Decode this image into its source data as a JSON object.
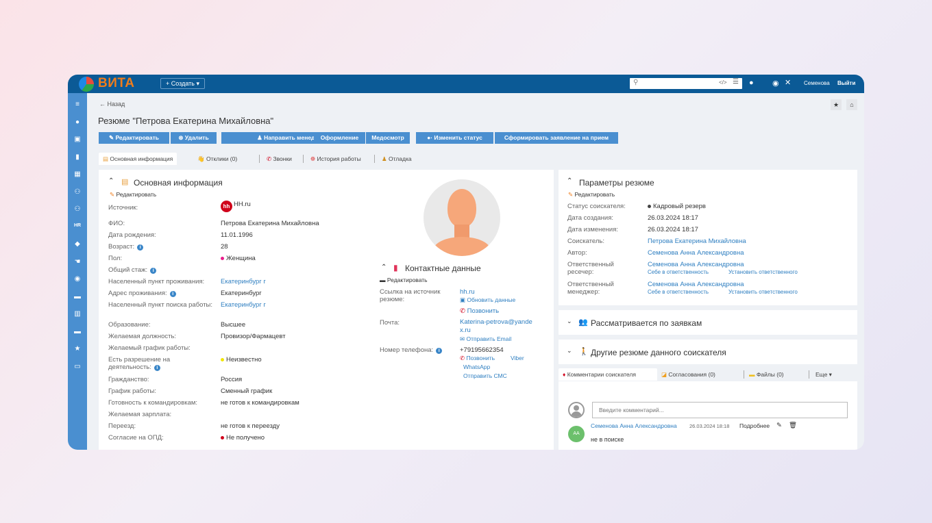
{
  "app": {
    "logo": "ВИТА",
    "create": "+ Создать ▾",
    "user": "Семенова",
    "logout": "Выйти",
    "search_placeholder": ""
  },
  "sidebar": {
    "icons": [
      "menu-icon",
      "user-circle-icon",
      "dashboard-icon",
      "book-icon",
      "grid-icon",
      "users-icon",
      "team-icon",
      "hr-icon",
      "ticket-icon",
      "hand-icon",
      "eye-icon",
      "document-icon",
      "library-icon",
      "file-icon",
      "star-icon",
      "open-book-icon"
    ],
    "hr_label": "HR"
  },
  "page": {
    "back": "← Назад",
    "title": "Резюме \"Петрова Екатерина Михайловна\""
  },
  "toolbar": [
    "Редактировать",
    "Удалить",
    "Направить менеджеру",
    "Оформление",
    "Медосмотр",
    "Изменить статус",
    "Сформировать заявление на прием"
  ],
  "tabs": [
    {
      "label": "Основная информация",
      "active": true
    },
    {
      "label": "Отклики (0)"
    },
    {
      "label": "Звонки"
    },
    {
      "label": "История работы"
    },
    {
      "label": "Отладка"
    }
  ],
  "basic": {
    "title": "Основная информация",
    "edit": "Редактировать",
    "source_badge": "hh",
    "rows": [
      {
        "label": "Источник:",
        "value": "HH.ru"
      },
      {
        "label": "ФИО:",
        "value": "Петрова Екатерина Михайловна"
      },
      {
        "label": "Дата рождения:",
        "value": "11.01.1996"
      },
      {
        "label": "Возраст:",
        "value": "28",
        "info": true
      },
      {
        "label": "Пол:",
        "value": "Женщина",
        "dot": "#e91e8c"
      },
      {
        "label": "Общий стаж:",
        "value": "",
        "info": true
      },
      {
        "label": "Населенный пункт проживания:",
        "value": "Екатеринбург г",
        "link": true
      },
      {
        "label": "Адрес проживания:",
        "value": "Екатеринбург",
        "info": true
      },
      {
        "label": "Населенный пункт поиска работы:",
        "value": "Екатеринбург г",
        "link": true
      },
      {
        "label": "Образование:",
        "value": "Высшее"
      },
      {
        "label": "Желаемая должность:",
        "value": "Провизор/Фармацевт"
      },
      {
        "label": "Желаемый график работы:",
        "value": ""
      },
      {
        "label": "Есть разрешение на деятельность:",
        "value": "Неизвестно",
        "dot": "#f2e600",
        "info": true
      },
      {
        "label": "Гражданство:",
        "value": "Россия"
      },
      {
        "label": "График работы:",
        "value": "Сменный график"
      },
      {
        "label": "Готовность к командировкам:",
        "value": "не готов к командировкам"
      },
      {
        "label": "Желаемая зарплата:",
        "value": ""
      },
      {
        "label": "Переезд:",
        "value": "не готов к переезду"
      },
      {
        "label": "Согласие на ОПД:",
        "value": "Не получено",
        "dot": "#d0021b"
      }
    ]
  },
  "contacts": {
    "title": "Контактные данные",
    "edit": "Редактировать",
    "source_label": "Ссылка на источник резюме:",
    "source_value": "hh.ru",
    "refresh": "Обновить данные",
    "call": "Позвонить",
    "email_label": "Почта:",
    "email_value": "Katerina-petrova@yandex.ru",
    "send_email": "Отправить Email",
    "phone_label": "Номер телефона:",
    "phone_value": "+79195662354",
    "phone_call": "Позвонить",
    "viber": "Viber",
    "whatsapp": "WhatsApp",
    "sms": "Отправить СМС"
  },
  "params": {
    "title": "Параметры резюме",
    "edit": "Редактировать",
    "status_label": "Статус соискателя:",
    "status": "Кадровый резерв",
    "created_label": "Дата создания:",
    "created": "26.03.2024 18:17",
    "modified_label": "Дата изменения:",
    "modified": "26.03.2024 18:17",
    "candidate_label": "Соискатель:",
    "candidate": "Петрова Екатерина Михайловна",
    "author_label": "Автор:",
    "author": "Семенова Анна Александровна",
    "researcher_label": "Ответственный ресечер:",
    "researcher": "Семенова Анна Александровна",
    "manager_label": "Ответственный менеджер:",
    "manager": "Семенова Анна Александровна",
    "self_assign": "Себе в ответственность",
    "set_responsible": "Установить ответственного"
  },
  "sections": {
    "requests": "Рассматривается по заявкам",
    "other": "Другие резюме данного соискателя"
  },
  "bottom_tabs": [
    "Комментарии соискателя",
    "Согласования (0)",
    "Файлы (0)",
    "Еще ▾"
  ],
  "comments": {
    "placeholder": "Введите комментарий...",
    "author": "Семенова Анна Александровна",
    "initials": "АА",
    "date": "26.03.2024 18:18",
    "more": "Подробнее",
    "text": "не в поиске"
  },
  "colors": {
    "header": "#0b5a96",
    "sidebar": "#4a8fd0",
    "button": "#4a8fd0",
    "link": "#2f7fc1",
    "logo": "#f07d1c"
  }
}
